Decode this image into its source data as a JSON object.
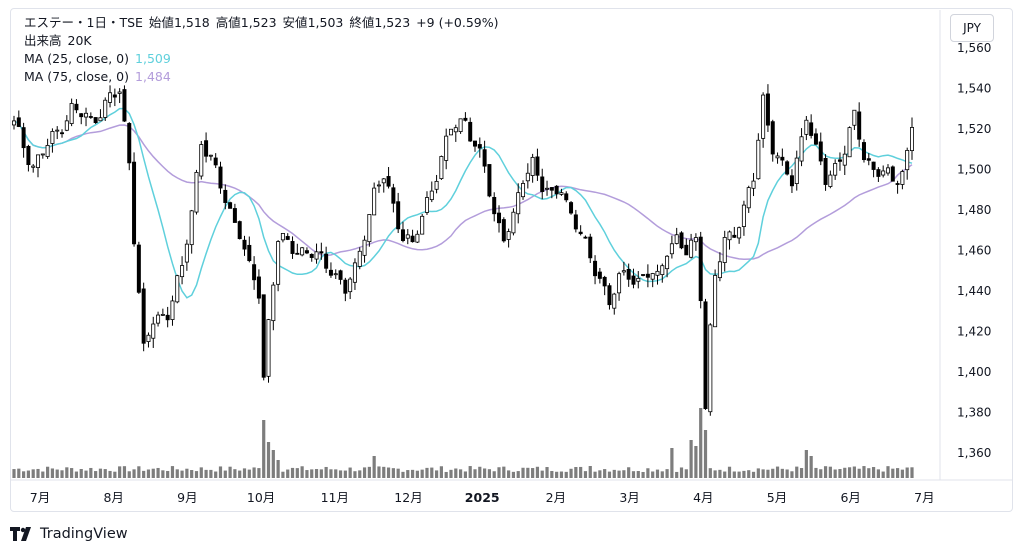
{
  "legend": {
    "symbol": "エステー・1日・TSE",
    "open_label": "始値",
    "open": "1,518",
    "high_label": "高値",
    "high": "1,523",
    "low_label": "安値",
    "low": "1,503",
    "close_label": "終値",
    "close": "1,523",
    "change": "+9 (+0.59%)",
    "volume_label": "出来高",
    "volume": "20K",
    "ma25_label": "MA (25, close, 0)",
    "ma25_value": "1,509",
    "ma75_label": "MA (75, close, 0)",
    "ma75_value": "1,484"
  },
  "currency_button": "JPY",
  "brand": "TradingView",
  "colors": {
    "up": "#131722",
    "down": "#000000",
    "ma25": "#5fd0dc",
    "ma75": "#b39ddb",
    "volume": "#7d7d7d",
    "axis_text": "#131722"
  },
  "chart_data": {
    "type": "candlestick",
    "x_axis_labels": [
      "7月",
      "8月",
      "9月",
      "10月",
      "11月",
      "12月",
      "2025",
      "2月",
      "3月",
      "4月",
      "5月",
      "6月",
      "7月"
    ],
    "y_axis_labels": [
      "1,560",
      "1,540",
      "1,520",
      "1,500",
      "1,480",
      "1,460",
      "1,440",
      "1,420",
      "1,400",
      "1,380",
      "1,360"
    ],
    "ylim": [
      1356,
      1561
    ],
    "price_path": [
      [
        0,
        1522
      ],
      [
        4,
        1502
      ],
      [
        8,
        1515
      ],
      [
        12,
        1530
      ],
      [
        16,
        1524
      ],
      [
        20,
        1535
      ],
      [
        22,
        1538
      ],
      [
        24,
        1505
      ],
      [
        25,
        1468
      ],
      [
        27,
        1410
      ],
      [
        29,
        1425
      ],
      [
        32,
        1430
      ],
      [
        35,
        1450
      ],
      [
        37,
        1480
      ],
      [
        39,
        1515
      ],
      [
        41,
        1504
      ],
      [
        45,
        1480
      ],
      [
        47,
        1469
      ],
      [
        49,
        1450
      ],
      [
        51,
        1440
      ],
      [
        52,
        1398
      ],
      [
        53,
        1425
      ],
      [
        55,
        1465
      ],
      [
        58,
        1462
      ],
      [
        62,
        1458
      ],
      [
        66,
        1452
      ],
      [
        69,
        1440
      ],
      [
        71,
        1450
      ],
      [
        73,
        1470
      ],
      [
        75,
        1488
      ],
      [
        77,
        1496
      ],
      [
        79,
        1482
      ],
      [
        81,
        1468
      ],
      [
        83,
        1462
      ],
      [
        85,
        1476
      ],
      [
        87,
        1492
      ],
      [
        89,
        1505
      ],
      [
        91,
        1520
      ],
      [
        94,
        1525
      ],
      [
        96,
        1512
      ],
      [
        98,
        1500
      ],
      [
        100,
        1478
      ],
      [
        102,
        1468
      ],
      [
        104,
        1475
      ],
      [
        106,
        1495
      ],
      [
        108,
        1505
      ],
      [
        110,
        1492
      ],
      [
        112,
        1485
      ],
      [
        114,
        1492
      ],
      [
        116,
        1478
      ],
      [
        118,
        1468
      ],
      [
        120,
        1455
      ],
      [
        122,
        1448
      ],
      [
        124,
        1434
      ],
      [
        126,
        1445
      ],
      [
        128,
        1449
      ],
      [
        130,
        1445
      ],
      [
        132,
        1448
      ],
      [
        134,
        1446
      ],
      [
        136,
        1462
      ],
      [
        138,
        1465
      ],
      [
        140,
        1458
      ],
      [
        142,
        1466
      ],
      [
        143,
        1440
      ],
      [
        144,
        1384
      ],
      [
        145,
        1420
      ],
      [
        146,
        1446
      ],
      [
        148,
        1465
      ],
      [
        150,
        1470
      ],
      [
        152,
        1480
      ],
      [
        154,
        1495
      ],
      [
        156,
        1535
      ],
      [
        158,
        1512
      ],
      [
        160,
        1500
      ],
      [
        162,
        1494
      ],
      [
        164,
        1516
      ],
      [
        165,
        1528
      ],
      [
        167,
        1508
      ],
      [
        169,
        1495
      ],
      [
        171,
        1502
      ],
      [
        173,
        1510
      ],
      [
        175,
        1525
      ],
      [
        177,
        1508
      ],
      [
        179,
        1500
      ],
      [
        181,
        1498
      ],
      [
        183,
        1494
      ],
      [
        185,
        1500
      ],
      [
        186,
        1508
      ],
      [
        187,
        1522
      ]
    ],
    "volume_note": "daily volume bars at bottom; spikes near 10月 and 4月"
  }
}
